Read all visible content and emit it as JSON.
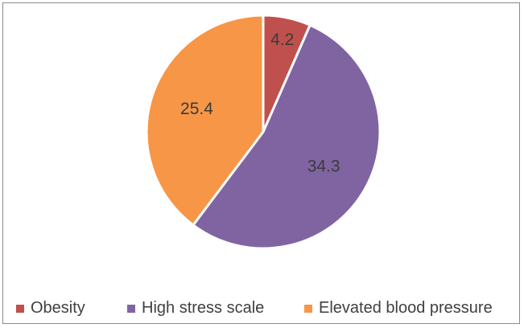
{
  "chart_data": {
    "type": "pie",
    "title": "",
    "slices": [
      {
        "label": "Obesity",
        "value": 4.2,
        "color": "#C0504D"
      },
      {
        "label": "High stress scale",
        "value": 34.3,
        "color": "#8064A2"
      },
      {
        "label": "Elevated blood pressure",
        "value": 25.4,
        "color": "#F79646"
      }
    ],
    "legend_position": "bottom",
    "data_labels": true
  }
}
